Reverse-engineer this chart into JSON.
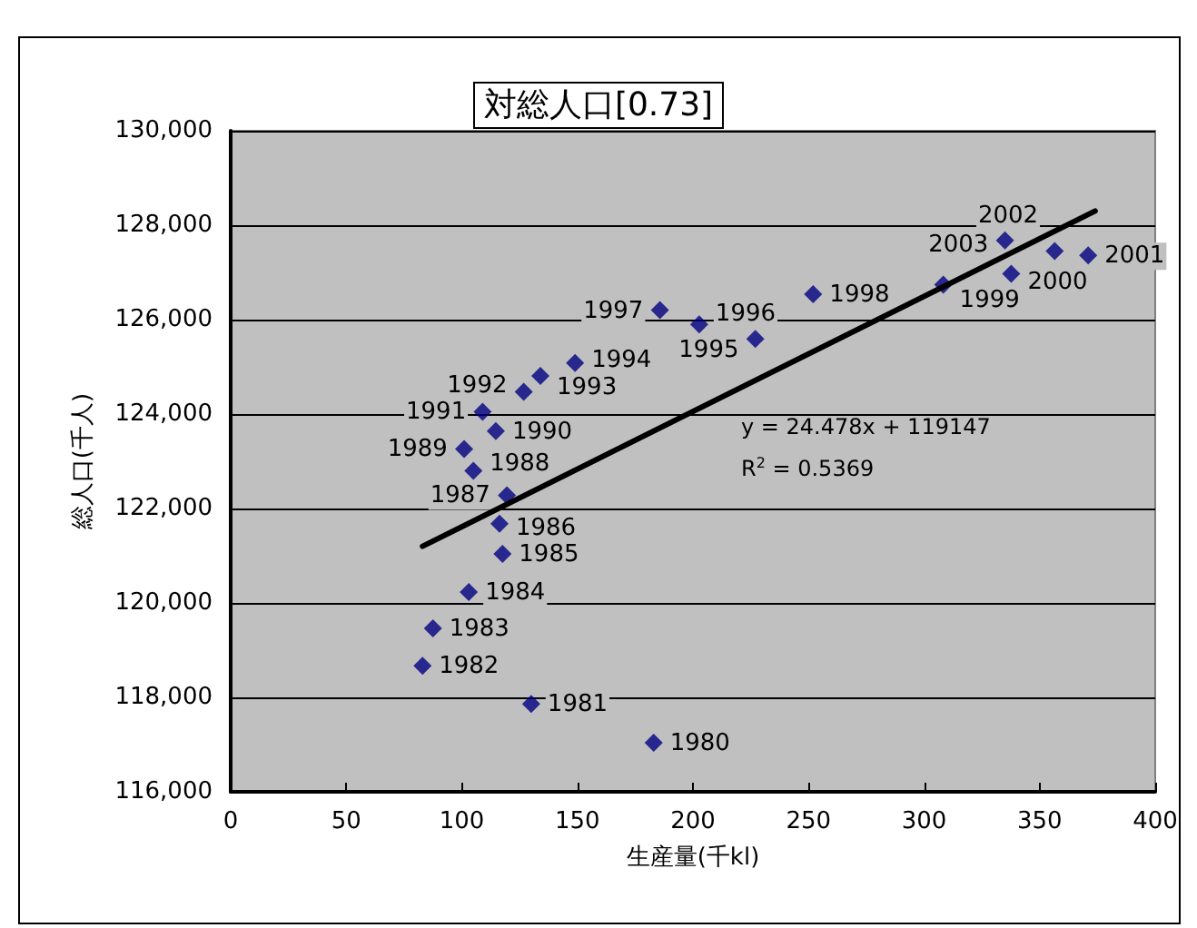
{
  "chart_data": {
    "type": "scatter",
    "title": "対総人口[0.73]",
    "xlabel": "生産量(千kl)",
    "ylabel": "総人口(千人)",
    "annotations": [
      "y = 24.478x + 119147",
      "R$^{2}$ = 0.5369",
      {
        "text": "1980",
        "x": 183,
        "y": 117040
      },
      {
        "text": "1981",
        "x": 130,
        "y": 117860
      },
      {
        "text": "1982",
        "x": 83,
        "y": 118670
      },
      {
        "text": "1983",
        "x": 87.5,
        "y": 119460
      },
      {
        "text": "1984",
        "x": 103,
        "y": 120230
      },
      {
        "text": "1985",
        "x": 117.6,
        "y": 121040
      },
      {
        "text": "1986",
        "x": 116.3,
        "y": 121680
      },
      {
        "text": "1987",
        "x": 119.5,
        "y": 122280
      },
      {
        "text": "1988",
        "x": 105,
        "y": 122800
      },
      {
        "text": "1989",
        "x": 101,
        "y": 123260
      },
      {
        "text": "1990",
        "x": 114.7,
        "y": 123640
      },
      {
        "text": "1991",
        "x": 109,
        "y": 124050
      },
      {
        "text": "1992",
        "x": 126.8,
        "y": 124470
      },
      {
        "text": "1993",
        "x": 134,
        "y": 124810
      },
      {
        "text": "1994",
        "x": 149,
        "y": 125080
      },
      {
        "text": "1995",
        "x": 227,
        "y": 125590
      },
      {
        "text": "1996",
        "x": 202.7,
        "y": 125900
      },
      {
        "text": "1997",
        "x": 185.7,
        "y": 126200
      },
      {
        "text": "1998",
        "x": 252,
        "y": 126540
      },
      {
        "text": "1999",
        "x": 308.3,
        "y": 126740
      },
      {
        "text": "2000",
        "x": 337.7,
        "y": 126970
      },
      {
        "text": "2001",
        "x": 371,
        "y": 127360
      },
      {
        "text": "2002",
        "x": 356.5,
        "y": 127450
      },
      {
        "text": "2003",
        "x": 335,
        "y": 127680
      }
    ],
    "series": [
      {
        "color": "#000080",
        "x": [
          183,
          130,
          83,
          87.5,
          103,
          117.6,
          116.3,
          119.5,
          105,
          101,
          114.7,
          109,
          126.8,
          134,
          149,
          227,
          202.7,
          185.7,
          252,
          308.3,
          337.7,
          371,
          356.5,
          335
        ],
        "values": [
          117040,
          117860,
          118670,
          119460,
          120230,
          121040,
          121680,
          122280,
          122800,
          123260,
          123640,
          124050,
          124470,
          124810,
          125080,
          125590,
          125900,
          126200,
          126540,
          126740,
          126970,
          127360,
          127450,
          127680
        ]
      },
      {
        "type": "line",
        "color": "#000000",
        "marker": "none",
        "x": [
          83,
          374
        ],
        "values": [
          121200,
          128300
        ]
      }
    ],
    "xlim": [
      0,
      400
    ],
    "xticks": [
      0,
      50,
      100,
      150,
      200,
      250,
      300,
      350,
      400
    ],
    "ylim": [
      116000,
      130000
    ],
    "yticks": [
      {
        "value": 116000,
        "label": "116,000"
      },
      {
        "value": 118000,
        "label": "118,000"
      },
      {
        "value": 120000,
        "label": "120,000"
      },
      {
        "value": 122000,
        "label": "122,000"
      },
      {
        "value": 124000,
        "label": "124,000"
      },
      {
        "value": 126000,
        "label": "126,000"
      },
      {
        "value": 128000,
        "label": "128,000"
      },
      {
        "value": 130000,
        "label": "130,000"
      }
    ],
    "grid": "y",
    "marker": "diamond"
  }
}
